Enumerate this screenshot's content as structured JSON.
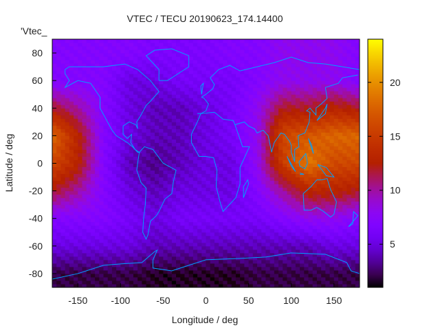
{
  "chart_data": {
    "type": "heatmap",
    "title": "VTEC / TECU 20190623_174.14400",
    "series_label": "'Vtec_",
    "xlabel": "Longitude / deg",
    "ylabel": "Latitude / deg",
    "xlim": [
      -180,
      180
    ],
    "ylim": [
      -90,
      90
    ],
    "xticks": [
      "-150",
      "-100",
      "-50",
      "0",
      "50",
      "100",
      "150"
    ],
    "xtick_values": [
      -150,
      -100,
      -50,
      0,
      50,
      100,
      150
    ],
    "yticks": [
      "-80",
      "-60",
      "-40",
      "-20",
      "0",
      "20",
      "40",
      "60",
      "80"
    ],
    "ytick_values": [
      -80,
      -60,
      -40,
      -20,
      0,
      20,
      40,
      60,
      80
    ],
    "colorbar": {
      "range": [
        1,
        24
      ],
      "ticks": [
        "5",
        "10",
        "15",
        "20"
      ],
      "tick_values": [
        5,
        10,
        15,
        20
      ]
    },
    "grid_lon": [
      -180,
      -150,
      -120,
      -90,
      -60,
      -30,
      0,
      30,
      60,
      90,
      120,
      150,
      180
    ],
    "grid_lat": [
      80,
      60,
      40,
      20,
      0,
      -20,
      -40,
      -60,
      -80
    ],
    "values": [
      [
        7,
        7,
        7,
        7,
        6.5,
        6.5,
        6.5,
        7,
        7,
        8,
        8,
        8,
        7
      ],
      [
        7,
        7,
        7,
        5,
        5,
        6,
        6,
        6,
        7,
        8,
        8,
        8,
        7
      ],
      [
        12,
        10,
        7,
        5,
        4,
        4,
        5,
        6,
        8,
        12,
        12,
        13,
        12
      ],
      [
        18,
        13,
        7,
        5,
        4,
        4,
        5,
        6,
        8,
        16,
        17,
        18,
        18
      ],
      [
        16,
        13,
        7,
        4,
        3,
        4,
        5,
        5,
        8,
        15,
        19,
        16,
        16
      ],
      [
        12,
        10,
        7,
        5,
        4,
        5,
        5,
        5,
        7,
        10,
        13,
        13,
        12
      ],
      [
        7,
        7,
        7,
        6,
        5,
        6,
        6,
        6,
        6,
        7,
        8,
        8,
        7
      ],
      [
        5,
        5,
        5,
        5,
        4,
        4,
        4,
        4,
        4,
        4,
        4,
        5,
        5
      ],
      [
        2,
        2,
        2,
        2,
        1.5,
        1.5,
        1.5,
        1.5,
        2,
        2,
        2,
        2,
        2
      ]
    ],
    "coastline_color": "#00a0ff",
    "grid": false
  }
}
